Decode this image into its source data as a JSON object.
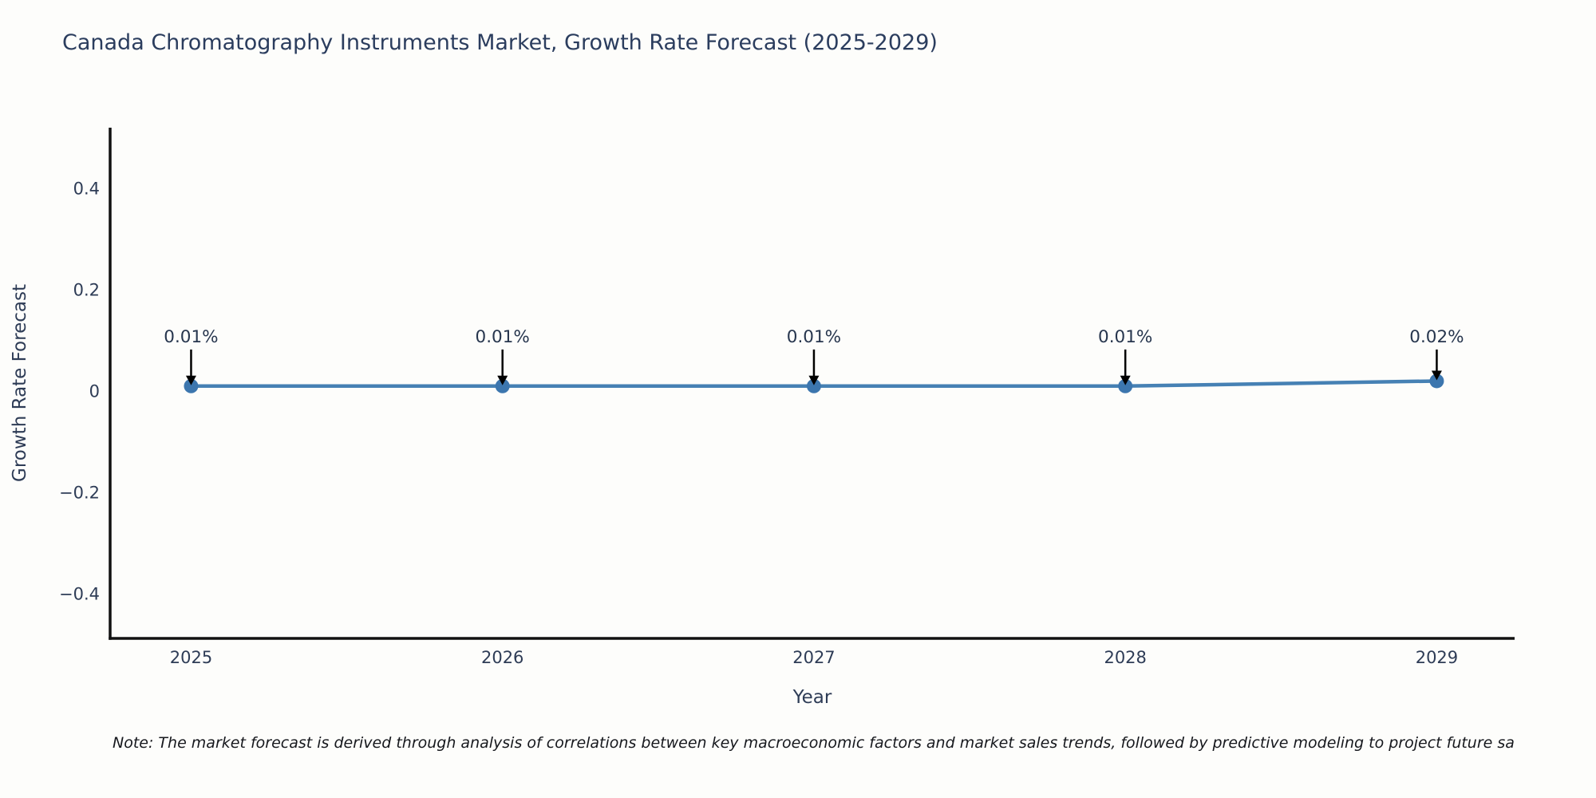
{
  "title": "Canada Chromatography Instruments Market, Growth Rate Forecast (2025-2029)",
  "note": "Note: The market forecast is derived through analysis of correlations between key macroeconomic factors and market sales trends, followed by predictive modeling to project future sa",
  "colors": {
    "line": "#4681b4",
    "marker": "#3c76ae",
    "axis": "#111111",
    "tick_text": "#2e3c56",
    "annotation_text": "#27364e",
    "arrow": "#000000",
    "title_text": "#2b3d5e"
  },
  "chart_data": {
    "type": "line",
    "title": "Canada Chromatography Instruments Market, Growth Rate Forecast (2025-2029)",
    "xlabel": "Year",
    "ylabel": "Growth Rate Forecast",
    "x": [
      2025,
      2026,
      2027,
      2028,
      2029
    ],
    "values": [
      0.01,
      0.01,
      0.01,
      0.01,
      0.02
    ],
    "point_labels": [
      "0.01%",
      "0.01%",
      "0.01%",
      "0.01%",
      "0.02%"
    ],
    "xticks": [
      2025,
      2026,
      2027,
      2028,
      2029
    ],
    "xtick_labels": [
      "2025",
      "2026",
      "2027",
      "2028",
      "2029"
    ],
    "yticks": [
      -0.4,
      -0.2,
      0,
      0.2,
      0.4
    ],
    "ytick_labels": [
      "−0.4",
      "−0.2",
      "0",
      "0.2",
      "0.4"
    ],
    "xlim": [
      2024.74,
      2029.25
    ],
    "ylim": [
      -0.488,
      0.52
    ],
    "grid": false,
    "legend": "none",
    "annotation_arrows": true
  }
}
